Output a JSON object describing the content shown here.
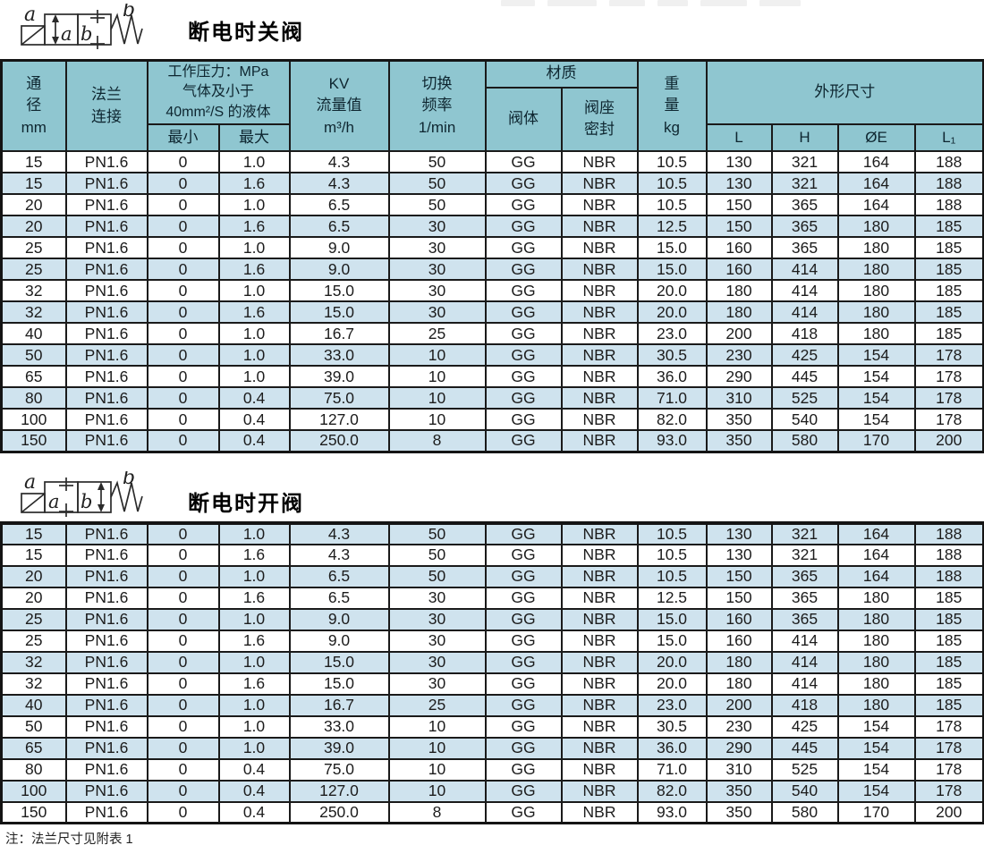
{
  "sections": [
    {
      "title": "断电时关阀",
      "symbol_labels": {
        "left": "a",
        "right": "b",
        "box1": "a",
        "box2": "b"
      }
    },
    {
      "title": "断电时开阀",
      "symbol_labels": {
        "left": "a",
        "right": "b",
        "box1": "a",
        "box2": "b"
      }
    }
  ],
  "table": {
    "header": {
      "dn": "通\n径\nmm",
      "flange": "法兰\n连接",
      "pressure_group": "工作压力：MPa\n气体及小于\n40mm²/S 的液体",
      "p_min": "最小",
      "p_max": "最大",
      "kv": "KV\n流量值\nm³/h",
      "freq": "切换\n频率\n1/min",
      "material_group": "材质",
      "body": "阀体",
      "seat": "阀座\n密封",
      "weight": "重\n量\nkg",
      "dims_group": "外形尺寸",
      "L": "L",
      "H": "H",
      "OE": "ØE",
      "L1": "L₁"
    },
    "rows": [
      [
        "15",
        "PN1.6",
        "0",
        "1.0",
        "4.3",
        "50",
        "GG",
        "NBR",
        "10.5",
        "130",
        "321",
        "164",
        "188"
      ],
      [
        "15",
        "PN1.6",
        "0",
        "1.6",
        "4.3",
        "50",
        "GG",
        "NBR",
        "10.5",
        "130",
        "321",
        "164",
        "188"
      ],
      [
        "20",
        "PN1.6",
        "0",
        "1.0",
        "6.5",
        "50",
        "GG",
        "NBR",
        "10.5",
        "150",
        "365",
        "164",
        "188"
      ],
      [
        "20",
        "PN1.6",
        "0",
        "1.6",
        "6.5",
        "30",
        "GG",
        "NBR",
        "12.5",
        "150",
        "365",
        "180",
        "185"
      ],
      [
        "25",
        "PN1.6",
        "0",
        "1.0",
        "9.0",
        "30",
        "GG",
        "NBR",
        "15.0",
        "160",
        "365",
        "180",
        "185"
      ],
      [
        "25",
        "PN1.6",
        "0",
        "1.6",
        "9.0",
        "30",
        "GG",
        "NBR",
        "15.0",
        "160",
        "414",
        "180",
        "185"
      ],
      [
        "32",
        "PN1.6",
        "0",
        "1.0",
        "15.0",
        "30",
        "GG",
        "NBR",
        "20.0",
        "180",
        "414",
        "180",
        "185"
      ],
      [
        "32",
        "PN1.6",
        "0",
        "1.6",
        "15.0",
        "30",
        "GG",
        "NBR",
        "20.0",
        "180",
        "414",
        "180",
        "185"
      ],
      [
        "40",
        "PN1.6",
        "0",
        "1.0",
        "16.7",
        "25",
        "GG",
        "NBR",
        "23.0",
        "200",
        "418",
        "180",
        "185"
      ],
      [
        "50",
        "PN1.6",
        "0",
        "1.0",
        "33.0",
        "10",
        "GG",
        "NBR",
        "30.5",
        "230",
        "425",
        "154",
        "178"
      ],
      [
        "65",
        "PN1.6",
        "0",
        "1.0",
        "39.0",
        "10",
        "GG",
        "NBR",
        "36.0",
        "290",
        "445",
        "154",
        "178"
      ],
      [
        "80",
        "PN1.6",
        "0",
        "0.4",
        "75.0",
        "10",
        "GG",
        "NBR",
        "71.0",
        "310",
        "525",
        "154",
        "178"
      ],
      [
        "100",
        "PN1.6",
        "0",
        "0.4",
        "127.0",
        "10",
        "GG",
        "NBR",
        "82.0",
        "350",
        "540",
        "154",
        "178"
      ],
      [
        "150",
        "PN1.6",
        "0",
        "0.4",
        "250.0",
        "8",
        "GG",
        "NBR",
        "93.0",
        "350",
        "580",
        "170",
        "200"
      ]
    ]
  },
  "footer": {
    "note": "注：法兰尺寸见附表 1"
  }
}
